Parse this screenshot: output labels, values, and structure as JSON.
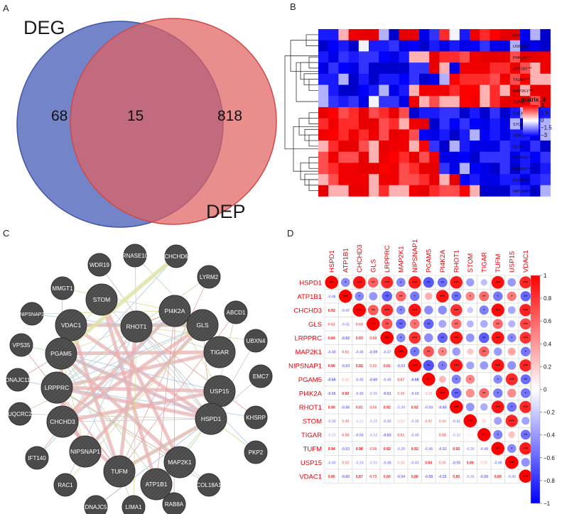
{
  "panels": {
    "A": {
      "letter": "A",
      "set1_label": "DEG",
      "set2_label": "DEP",
      "only1": "68",
      "both": "15",
      "only2": "818",
      "colors": {
        "set1": "#5a6ebf",
        "set2": "#e06161",
        "overlap": "#9b4466"
      }
    },
    "B": {
      "letter": "B",
      "legend_title": "matrix_3",
      "legend_ticks": [
        "3",
        "1.5",
        "0",
        "−1.5",
        "−3"
      ],
      "genes": [
        "RHOT1**",
        "USP15*",
        "PI4K2A***",
        "ATP1B1***",
        "TIGAR***",
        "MAP2K1***",
        "TUFM*",
        "CHCHD3**",
        "STOM***",
        "VDAC1***",
        "GLS***",
        "LRPPRC***",
        "HSPD1***",
        "PGAM5**",
        "NIPSNAP1**"
      ],
      "pattern_rows": [
        "LLHHHHLLHHLLHMLHHHHHLLL",
        "LLLLMLLLLLLLLLLLLLLLLLL",
        "LLLLLLLLLHHHHHHHHHHHHHH",
        "LLLLLLLLLLLHHLHHHHHHHHH",
        "LLLLLLLLLLLLLHHHHHHHHHH",
        "LLLLLLLLLHHHHHHHHHHHHHH",
        "LLLLLMLLLHHHHHHHHHHHHHH",
        "HHHHHHHHHLLLLLLLLLLLLLL",
        "HHHHHHHHHHHLLLLLLLLLLLL",
        "HHHHHHHHHHLLLLLLLLLLLLL",
        "HHHHHHHHHHHLLLLLLLLLLLL",
        "HHHHHHHHHHHHLLLLLLLLLLL",
        "HHHHHHHHHHHHLLLLLLLLLLL",
        "HHHHHHHHHHHHHHLLLLLLLLL",
        "HHHHHHHHHHHHHHHHLLLLLLL"
      ]
    },
    "C": {
      "letter": "C",
      "nodes": [
        {
          "id": "RNASE10",
          "big": false
        },
        {
          "id": "CHCHD6",
          "big": false
        },
        {
          "id": "WDR19",
          "big": false
        },
        {
          "id": "LYRM2",
          "big": false
        },
        {
          "id": "MMGT1",
          "big": false
        },
        {
          "id": "RHOT1",
          "big": true
        },
        {
          "id": "PI4K2A",
          "big": true
        },
        {
          "id": "STOM",
          "big": true
        },
        {
          "id": "ABCD1",
          "big": false
        },
        {
          "id": "NIPSNAP2",
          "big": false
        },
        {
          "id": "VDAC1",
          "big": true
        },
        {
          "id": "GLS",
          "big": true
        },
        {
          "id": "UBXN4",
          "big": false
        },
        {
          "id": "VPS35",
          "big": false
        },
        {
          "id": "PGAM5",
          "big": true
        },
        {
          "id": "TIGAR",
          "big": true
        },
        {
          "id": "DNAJC11",
          "big": false
        },
        {
          "id": "EMC7",
          "big": false
        },
        {
          "id": "LRPPRC",
          "big": true
        },
        {
          "id": "USP15",
          "big": true
        },
        {
          "id": "UQCRC2",
          "big": false
        },
        {
          "id": "KHSRP",
          "big": false
        },
        {
          "id": "CHCHD3",
          "big": true
        },
        {
          "id": "HSPD1",
          "big": true
        },
        {
          "id": "IFT140",
          "big": false
        },
        {
          "id": "NIPSNAP1",
          "big": true
        },
        {
          "id": "MAP2K1",
          "big": true
        },
        {
          "id": "PKP2",
          "big": false
        },
        {
          "id": "TUFM",
          "big": true
        },
        {
          "id": "ATP1B1",
          "big": true
        },
        {
          "id": "RAC1",
          "big": false
        },
        {
          "id": "COL18A1",
          "big": false
        },
        {
          "id": "DNAJC5",
          "big": false
        },
        {
          "id": "LIMA1",
          "big": false
        },
        {
          "id": "RAB8A",
          "big": false
        }
      ]
    },
    "D": {
      "letter": "D",
      "genes": [
        "HSPD1",
        "ATP1B1",
        "CHCHD3",
        "GLS",
        "LRPPRC",
        "MAP2K1",
        "NIPSNAP1",
        "PGAM5",
        "PI4K2A",
        "RHOT1",
        "STOM",
        "TIGAR",
        "TUFM",
        "USP15",
        "VDAC1"
      ],
      "lower": [
        [],
        [
          "-0.46"
        ],
        [
          "0.92",
          "-0.47"
        ],
        [
          "0.62",
          "-0.41",
          "0.64"
        ],
        [
          "0.84",
          "-0.62",
          "0.83",
          "0.68"
        ],
        [
          "-0.48",
          "0.61",
          "-0.46",
          "-0.59",
          "-0.47"
        ],
        [
          "0.90",
          "-0.53",
          "0.92",
          "0.55",
          "0.81",
          "-0.53"
        ],
        [
          "-0.66",
          "0.32",
          "-0.45",
          "-0.60",
          "-0.45",
          "0.67",
          "-0.68"
        ],
        [
          "-0.56",
          "0.92",
          "-0.45",
          "-0.35",
          "-0.61",
          "0.48",
          "-0.50",
          "0.28"
        ],
        [
          "0.90",
          "-0.56",
          "0.81",
          "0.58",
          "0.92",
          "-0.39",
          "0.92",
          "-0.50",
          "-0.60"
        ],
        [
          "-0.38",
          "0.48",
          "-0.21",
          "-0.29",
          "-0.42",
          "0.23",
          "-0.36",
          "0.47",
          "0.44",
          "-0.41"
        ],
        [
          "-0.25",
          "0.58",
          "-0.50",
          "-0.33",
          "-0.63",
          "0.61",
          "-0.40",
          "0.01",
          "0.58",
          "-0.32",
          "0.11"
        ],
        [
          "0.94",
          "-0.53",
          "0.96",
          "0.58",
          "0.92",
          "-0.39",
          "0.92",
          "-0.46",
          "-0.52",
          "0.92",
          "-0.36",
          "-0.49"
        ],
        [
          "-0.40",
          "0.52",
          "-0.34",
          "-0.30",
          "-0.46",
          "0.35",
          "-0.43",
          "0.84",
          "0.45",
          "-0.55",
          "0.86",
          "0.25",
          "-0.46"
        ],
        [
          "0.85",
          "-0.60",
          "0.87",
          "0.73",
          "0.80",
          "-0.54",
          "0.86",
          "-0.58",
          "-0.55",
          "0.85",
          "-0.36",
          "-0.56",
          "0.89",
          "-0.43"
        ]
      ],
      "colorbar_ticks": [
        "1",
        "0.8",
        "0.6",
        "0.4",
        "0.2",
        "0",
        "−0.2",
        "−0.4",
        "−0.6",
        "−0.8",
        "−1"
      ]
    }
  }
}
